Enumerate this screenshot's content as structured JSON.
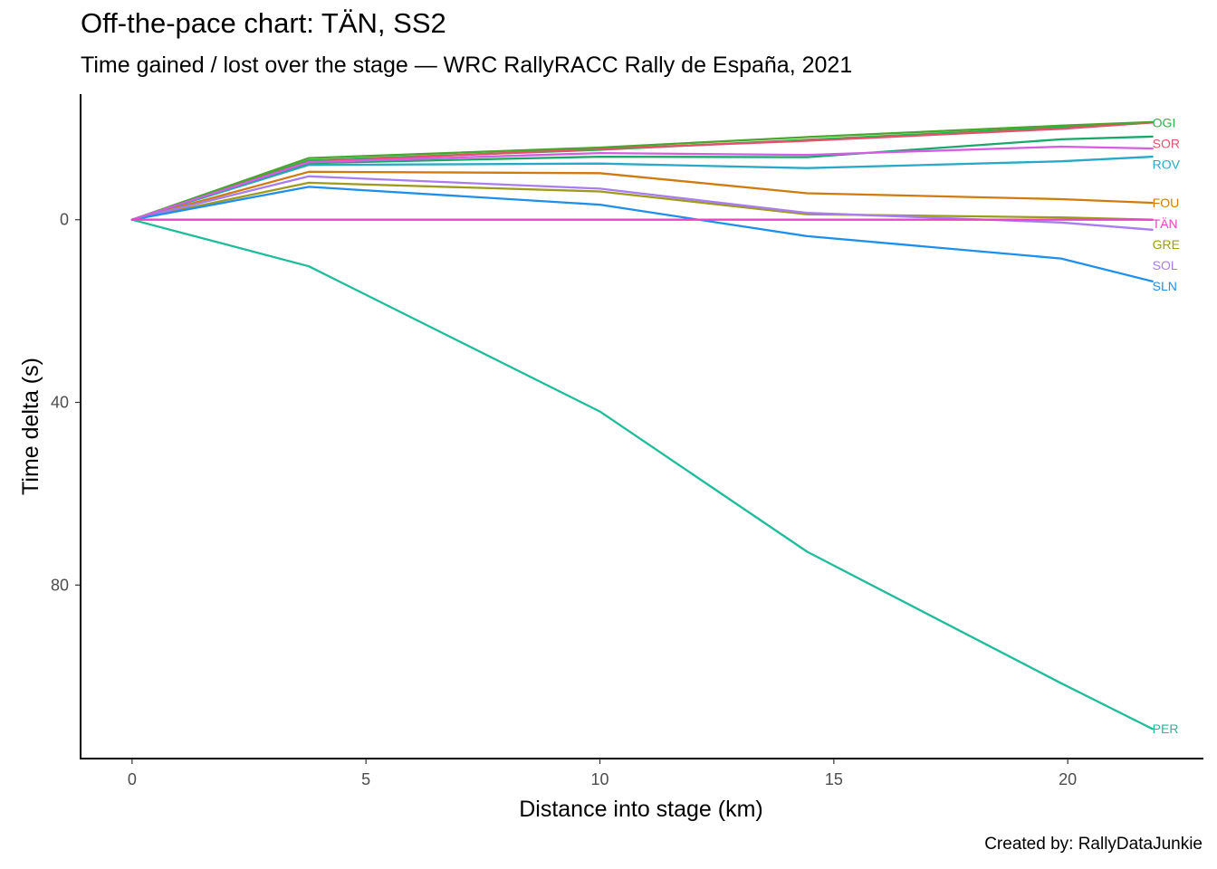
{
  "chart_data": {
    "type": "line",
    "title": "Off-the-pace chart: TÄN, SS2",
    "subtitle": "Time gained / lost over the stage — WRC RallyRACC Rally de España, 2021",
    "caption": "Created by: RallyDataJunkie",
    "xlabel": "Distance into stage (km)",
    "ylabel": "Time delta (s)",
    "xlim": [
      -1.1,
      22.9
    ],
    "ylim": [
      118,
      -27.5
    ],
    "y_reversed": true,
    "x_ticks": [
      0,
      5,
      10,
      15,
      20
    ],
    "y_ticks": [
      0,
      40,
      80
    ],
    "grid": false,
    "legend": "direct labels at line ends",
    "x": [
      0,
      3.78,
      10,
      14.43,
      19.86,
      21.81
    ],
    "series": [
      {
        "name": "OGI",
        "color": "#2AB34B",
        "values": [
          0,
          -13,
          -15.3,
          -17.5,
          -20.2,
          -21.3
        ]
      },
      {
        "name": "SOR",
        "color": "#E7506B",
        "values": [
          0,
          -12.7,
          -15.5,
          -17.3,
          -19.9,
          -21.3
        ]
      },
      {
        "name": "ROV",
        "color": "#29A8C8",
        "values": [
          0,
          -12,
          -12.3,
          -11.3,
          -12.8,
          -13.8
        ]
      },
      {
        "name": "FOU",
        "color": "#CF7B10",
        "values": [
          0,
          -10.5,
          -10.2,
          -5.8,
          -4.5,
          -3.7
        ]
      },
      {
        "name": "TÄN",
        "color": "#EE42C4",
        "values": [
          0,
          0,
          0,
          0,
          0,
          0
        ]
      },
      {
        "name": "GRE",
        "color": "#9E9B1C",
        "values": [
          0,
          -8.1,
          -6.2,
          -1.2,
          -0.5,
          0
        ]
      },
      {
        "name": "SOL",
        "color": "#A97CF2",
        "values": [
          0,
          -9.5,
          -6.8,
          -1.5,
          0.6,
          2.2
        ]
      },
      {
        "name": "SLN",
        "color": "#1E8FEA",
        "values": [
          0,
          -7.2,
          -3.3,
          3.6,
          8.5,
          13.5
        ]
      },
      {
        "name": "PER",
        "color": "#1FBC9A",
        "values": [
          0,
          10.2,
          42,
          72.7,
          101.5,
          111.5
        ]
      },
      {
        "name": "",
        "color": "#4BA52E",
        "values": [
          0,
          -13.5,
          -15.8,
          -18.1,
          -20.6,
          -21.4
        ]
      },
      {
        "name": "",
        "color": "#1AA86A",
        "values": [
          0,
          -12.4,
          -13.8,
          -13.7,
          -17.6,
          -18.2
        ]
      },
      {
        "name": "",
        "color": "#D65CE5",
        "values": [
          0,
          -12.6,
          -14.6,
          -14.2,
          -16,
          -15.6
        ]
      }
    ]
  }
}
